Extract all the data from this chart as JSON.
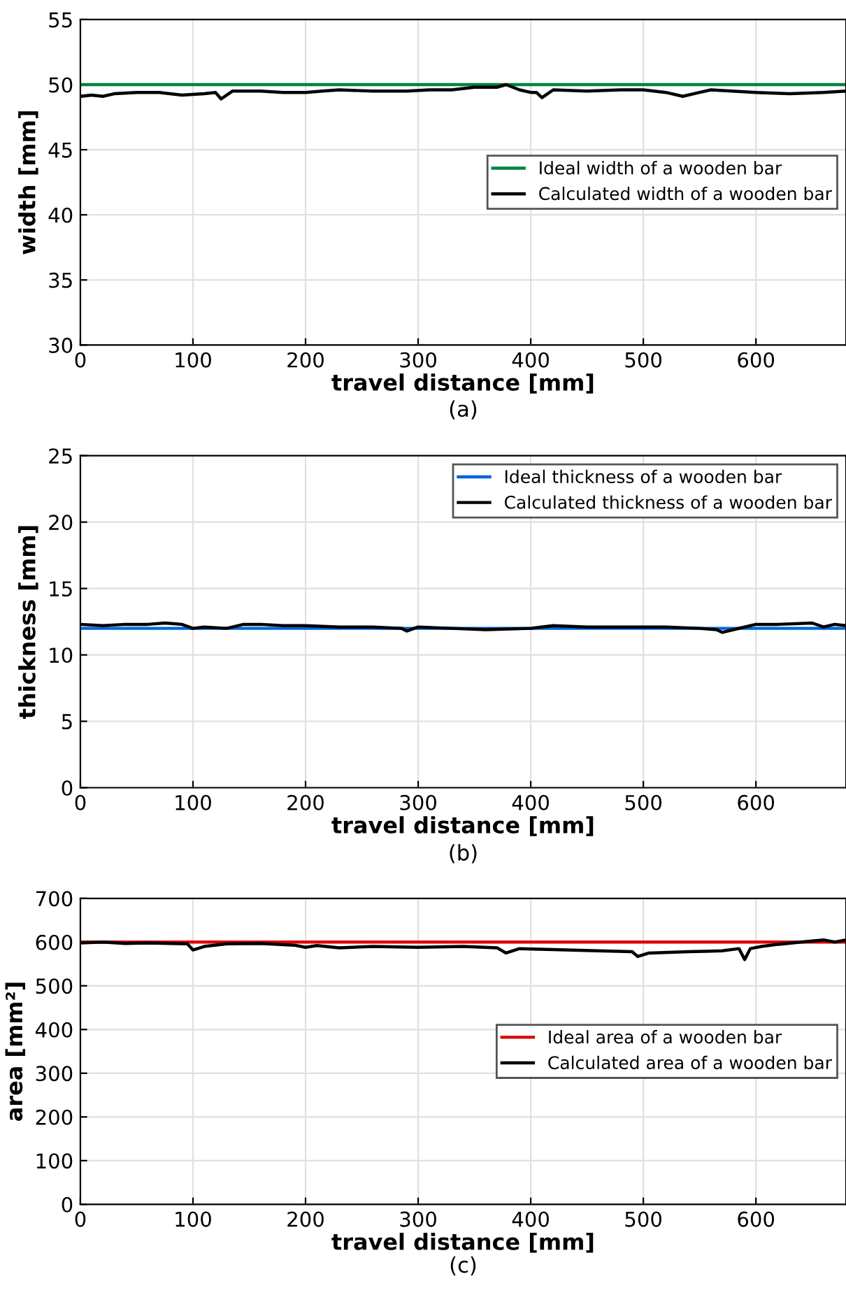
{
  "chart_data": [
    {
      "type": "line",
      "xlabel": "travel distance [mm]",
      "ylabel": "width [mm]",
      "annotations": [
        "(a)"
      ],
      "xlim": [
        0,
        680
      ],
      "xticks": [
        0,
        100,
        200,
        300,
        400,
        500,
        600
      ],
      "ylim": [
        30,
        55
      ],
      "yticks": [
        30,
        35,
        40,
        45,
        50,
        55
      ],
      "grid": true,
      "legend": "right",
      "series": [
        {
          "name": "Ideal width of a wooden bar",
          "color": "#00843d",
          "x": [
            0,
            680
          ],
          "values": [
            50,
            50
          ]
        },
        {
          "name": "Calculated width of a wooden bar",
          "color": "#000000",
          "x": [
            0,
            10,
            20,
            30,
            50,
            70,
            90,
            110,
            120,
            125,
            135,
            160,
            180,
            200,
            215,
            230,
            260,
            290,
            310,
            330,
            350,
            370,
            378,
            390,
            400,
            405,
            410,
            420,
            450,
            480,
            500,
            520,
            535,
            550,
            560,
            600,
            630,
            660,
            680
          ],
          "values": [
            49.1,
            49.2,
            49.1,
            49.3,
            49.4,
            49.4,
            49.2,
            49.3,
            49.4,
            48.9,
            49.5,
            49.5,
            49.4,
            49.4,
            49.5,
            49.6,
            49.5,
            49.5,
            49.6,
            49.6,
            49.8,
            49.8,
            50.0,
            49.6,
            49.4,
            49.4,
            49.0,
            49.6,
            49.5,
            49.6,
            49.6,
            49.4,
            49.1,
            49.4,
            49.6,
            49.4,
            49.3,
            49.4,
            49.5
          ]
        }
      ]
    },
    {
      "type": "line",
      "xlabel": "travel distance [mm]",
      "ylabel": "thickness [mm]",
      "annotations": [
        "(b)"
      ],
      "xlim": [
        0,
        680
      ],
      "xticks": [
        0,
        100,
        200,
        300,
        400,
        500,
        600
      ],
      "ylim": [
        0,
        25
      ],
      "yticks": [
        0,
        5,
        10,
        15,
        20,
        25
      ],
      "grid": true,
      "legend": "top right",
      "series": [
        {
          "name": "Ideal thickness of a wooden bar",
          "color": "#0066dd",
          "x": [
            0,
            680
          ],
          "values": [
            12,
            12
          ]
        },
        {
          "name": "Calculated thickness of a wooden bar",
          "color": "#000000",
          "x": [
            0,
            20,
            40,
            60,
            75,
            90,
            100,
            110,
            130,
            145,
            160,
            180,
            200,
            230,
            260,
            285,
            290,
            300,
            330,
            360,
            400,
            420,
            450,
            480,
            520,
            550,
            565,
            570,
            580,
            600,
            620,
            650,
            660,
            670,
            680
          ],
          "values": [
            12.3,
            12.2,
            12.3,
            12.3,
            12.4,
            12.3,
            12.0,
            12.1,
            12.0,
            12.3,
            12.3,
            12.2,
            12.2,
            12.1,
            12.1,
            12.0,
            11.8,
            12.1,
            12.0,
            11.9,
            12.0,
            12.2,
            12.1,
            12.1,
            12.1,
            12.0,
            11.9,
            11.7,
            11.9,
            12.3,
            12.3,
            12.4,
            12.1,
            12.3,
            12.2
          ]
        }
      ]
    },
    {
      "type": "line",
      "xlabel": "travel distance [mm]",
      "ylabel": "area [mm²]",
      "annotations": [
        "(c)"
      ],
      "xlim": [
        0,
        680
      ],
      "xticks": [
        0,
        100,
        200,
        300,
        400,
        500,
        600
      ],
      "ylim": [
        0,
        700
      ],
      "yticks": [
        0,
        100,
        200,
        300,
        400,
        500,
        600,
        700
      ],
      "grid": true,
      "legend": "right",
      "series": [
        {
          "name": "Ideal area of a wooden bar",
          "color": "#dd0000",
          "x": [
            0,
            680
          ],
          "values": [
            600,
            600
          ]
        },
        {
          "name": "Calculated area of a wooden bar",
          "color": "#000000",
          "x": [
            0,
            20,
            40,
            60,
            80,
            95,
            100,
            110,
            130,
            160,
            190,
            200,
            210,
            230,
            260,
            300,
            340,
            370,
            378,
            390,
            420,
            460,
            490,
            495,
            505,
            540,
            570,
            585,
            590,
            595,
            605,
            620,
            640,
            660,
            670,
            680
          ],
          "values": [
            598,
            600,
            597,
            598,
            597,
            596,
            582,
            590,
            596,
            597,
            593,
            588,
            592,
            587,
            590,
            588,
            590,
            587,
            575,
            585,
            583,
            580,
            578,
            567,
            575,
            578,
            580,
            585,
            560,
            585,
            590,
            595,
            600,
            605,
            600,
            605
          ]
        }
      ]
    }
  ]
}
